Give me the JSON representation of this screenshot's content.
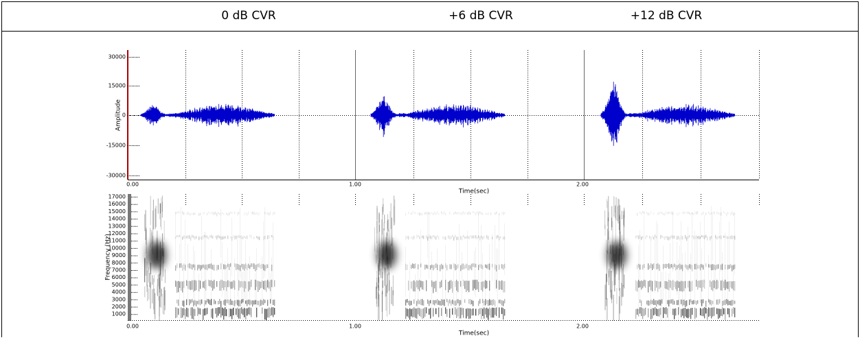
{
  "header": {
    "labels": [
      "0 dB CVR",
      "+6 dB CVR",
      "+12 dB CVR"
    ]
  },
  "waveform": {
    "y_label": "Amplitude",
    "x_label": "Time(sec)",
    "y_ticks": [
      30000,
      15000,
      0,
      -15000,
      -30000
    ],
    "x_ticks": [
      "0.00",
      "1.00",
      "2.00"
    ]
  },
  "spectrogram": {
    "y_label": "Frequency (Hz)",
    "x_label": "Time(sec)",
    "y_ticks": [
      17000,
      16000,
      15000,
      14000,
      13000,
      12000,
      11000,
      10000,
      9000,
      8000,
      7000,
      6000,
      5000,
      4000,
      3000,
      2000,
      1000
    ],
    "x_ticks": [
      "0.00",
      "1.00",
      "2.00"
    ]
  }
}
